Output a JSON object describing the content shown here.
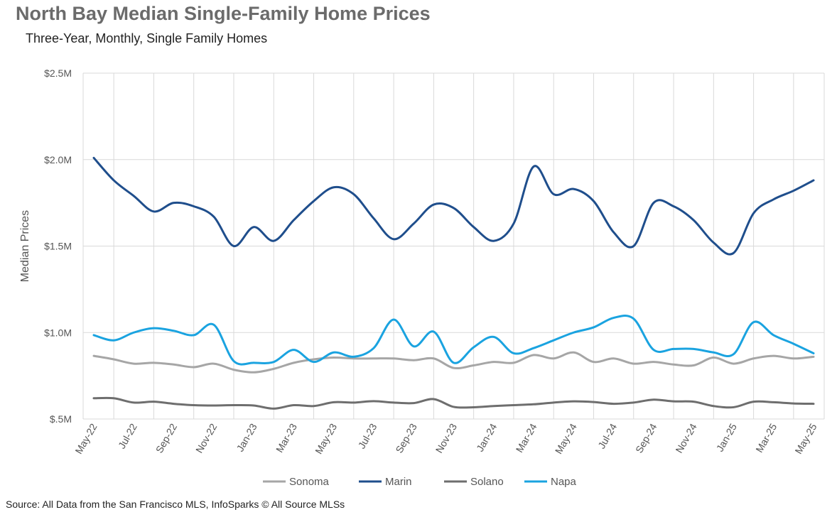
{
  "page": {
    "title": "North Bay Median Single-Family Home Prices",
    "subtitle": "Three-Year, Monthly, Single Family Homes",
    "source": "Source: All Data from the San Francisco MLS, InfoSparks © All Source MLSs"
  },
  "chart_data": {
    "type": "line",
    "ylabel": "Median Prices",
    "xlabel": "",
    "ylim": [
      500000,
      2500000
    ],
    "yticks": [
      500000,
      1000000,
      1500000,
      2000000,
      2500000
    ],
    "ytick_labels": [
      "$.5M",
      "$1.0M",
      "$1.5M",
      "$2.0M",
      "$2.5M"
    ],
    "grid": true,
    "legend_position": "bottom",
    "x": [
      "May-22",
      "Jun-22",
      "Jul-22",
      "Aug-22",
      "Sep-22",
      "Oct-22",
      "Nov-22",
      "Dec-22",
      "Jan-23",
      "Feb-23",
      "Mar-23",
      "Apr-23",
      "May-23",
      "Jun-23",
      "Jul-23",
      "Aug-23",
      "Sep-23",
      "Oct-23",
      "Nov-23",
      "Dec-23",
      "Jan-24",
      "Feb-24",
      "Mar-24",
      "Apr-24",
      "May-24",
      "Jun-24",
      "Jul-24",
      "Aug-24",
      "Sep-24",
      "Oct-24",
      "Nov-24",
      "Dec-24",
      "Jan-25",
      "Feb-25",
      "Mar-25",
      "Apr-25",
      "May-25"
    ],
    "xtick_labels": [
      "May-22",
      "Jul-22",
      "Sep-22",
      "Nov-22",
      "Jan-23",
      "Mar-23",
      "May-23",
      "Jul-23",
      "Sep-23",
      "Nov-23",
      "Jan-24",
      "Mar-24",
      "May-24",
      "Jul-24",
      "Sep-24",
      "Nov-24",
      "Jan-25",
      "Mar-25",
      "May-25"
    ],
    "series": [
      {
        "name": "Sonoma",
        "color": "#a6a6a6",
        "values": [
          865000,
          845000,
          820000,
          825000,
          815000,
          800000,
          820000,
          785000,
          770000,
          790000,
          825000,
          845000,
          855000,
          850000,
          850000,
          850000,
          840000,
          850000,
          795000,
          810000,
          830000,
          825000,
          870000,
          850000,
          885000,
          830000,
          850000,
          820000,
          830000,
          815000,
          810000,
          855000,
          820000,
          850000,
          865000,
          850000,
          860000
        ]
      },
      {
        "name": "Marin",
        "color": "#1f4e8c",
        "values": [
          2010000,
          1880000,
          1790000,
          1700000,
          1750000,
          1730000,
          1670000,
          1500000,
          1610000,
          1530000,
          1650000,
          1760000,
          1840000,
          1800000,
          1660000,
          1540000,
          1630000,
          1740000,
          1720000,
          1610000,
          1530000,
          1630000,
          1960000,
          1800000,
          1830000,
          1760000,
          1580000,
          1500000,
          1750000,
          1730000,
          1650000,
          1520000,
          1460000,
          1690000,
          1770000,
          1820000,
          1880000
        ]
      },
      {
        "name": "Solano",
        "color": "#6e6e6e",
        "values": [
          620000,
          620000,
          595000,
          600000,
          588000,
          580000,
          578000,
          580000,
          578000,
          560000,
          580000,
          575000,
          597000,
          595000,
          603000,
          595000,
          592000,
          615000,
          570000,
          568000,
          575000,
          580000,
          585000,
          595000,
          602000,
          598000,
          588000,
          595000,
          612000,
          602000,
          600000,
          575000,
          568000,
          600000,
          597000,
          590000,
          588000
        ]
      },
      {
        "name": "Napa",
        "color": "#1aa3e0",
        "values": [
          985000,
          955000,
          1000000,
          1025000,
          1010000,
          985000,
          1045000,
          835000,
          825000,
          830000,
          900000,
          830000,
          885000,
          860000,
          910000,
          1075000,
          920000,
          1005000,
          825000,
          915000,
          975000,
          880000,
          910000,
          955000,
          1000000,
          1030000,
          1085000,
          1080000,
          900000,
          905000,
          905000,
          885000,
          875000,
          1060000,
          985000,
          935000,
          880000
        ]
      }
    ]
  }
}
